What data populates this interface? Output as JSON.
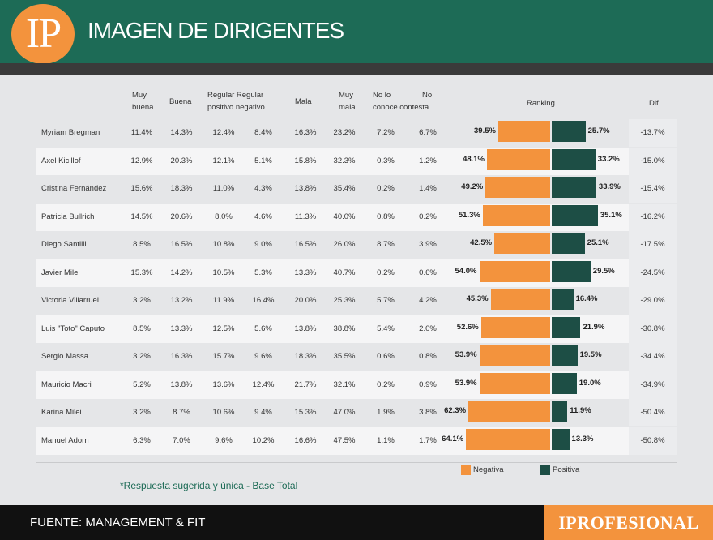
{
  "header": {
    "logo": "IP",
    "title": "IMAGEN DE DIRIGENTES"
  },
  "columns": {
    "muy_buena": [
      "Muy",
      "buena"
    ],
    "buena": "Buena",
    "regular": [
      "Regular Regular",
      "positivo negativo"
    ],
    "mala": "Mala",
    "muy_mala": [
      "Muy",
      "mala"
    ],
    "no_conoce": [
      "No lo",
      "conoce contesta"
    ],
    "no_contesta": "No",
    "ranking": "Ranking",
    "dif": "Dif."
  },
  "rows": [
    {
      "name": "Myriam Bregman",
      "values": [
        "11.4%",
        "14.3%",
        "12.4%",
        "8.4%",
        "16.3%",
        "23.2%",
        "7.2%",
        "6.7%"
      ],
      "neg_label": "39.5%",
      "pos_label": "25.7%",
      "dif": "-13.7%"
    },
    {
      "name": "Axel Kicillof",
      "values": [
        "12.9%",
        "20.3%",
        "12.1%",
        "5.1%",
        "15.8%",
        "32.3%",
        "0.3%",
        "1.2%"
      ],
      "neg_label": "48.1%",
      "pos_label": "33.2%",
      "dif": "-15.0%"
    },
    {
      "name": "Cristina Fernández",
      "values": [
        "15.6%",
        "18.3%",
        "11.0%",
        "4.3%",
        "13.8%",
        "35.4%",
        "0.2%",
        "1.4%"
      ],
      "neg_label": "49.2%",
      "pos_label": "33.9%",
      "dif": "-15.4%"
    },
    {
      "name": "Patricia Bullrich",
      "values": [
        "14.5%",
        "20.6%",
        "8.0%",
        "4.6%",
        "11.3%",
        "40.0%",
        "0.8%",
        "0.2%"
      ],
      "neg_label": "51.3%",
      "pos_label": "35.1%",
      "dif": "-16.2%"
    },
    {
      "name": "Diego Santilli",
      "values": [
        "8.5%",
        "16.5%",
        "10.8%",
        "9.0%",
        "16.5%",
        "26.0%",
        "8.7%",
        "3.9%"
      ],
      "neg_label": "42.5%",
      "pos_label": "25.1%",
      "dif": "-17.5%"
    },
    {
      "name": "Javier Milei",
      "values": [
        "15.3%",
        "14.2%",
        "10.5%",
        "5.3%",
        "13.3%",
        "40.7%",
        "0.2%",
        "0.6%"
      ],
      "neg_label": "54.0%",
      "pos_label": "29.5%",
      "dif": "-24.5%"
    },
    {
      "name": "Victoria Villarruel",
      "values": [
        "3.2%",
        "13.2%",
        "11.9%",
        "16.4%",
        "20.0%",
        "25.3%",
        "5.7%",
        "4.2%"
      ],
      "neg_label": "45.3%",
      "pos_label": "16.4%",
      "dif": "-29.0%"
    },
    {
      "name": "Luis \"Toto\" Caputo",
      "values": [
        "8.5%",
        "13.3%",
        "12.5%",
        "5.6%",
        "13.8%",
        "38.8%",
        "5.4%",
        "2.0%"
      ],
      "neg_label": "52.6%",
      "pos_label": "21.9%",
      "dif": "-30.8%"
    },
    {
      "name": "Sergio Massa",
      "values": [
        "3.2%",
        "16.3%",
        "15.7%",
        "9.6%",
        "18.3%",
        "35.5%",
        "0.6%",
        "0.8%"
      ],
      "neg_label": "53.9%",
      "pos_label": "19.5%",
      "dif": "-34.4%"
    },
    {
      "name": "Mauricio Macri",
      "values": [
        "5.2%",
        "13.8%",
        "13.6%",
        "12.4%",
        "21.7%",
        "32.1%",
        "0.2%",
        "0.9%"
      ],
      "neg_label": "53.9%",
      "pos_label": "19.0%",
      "dif": "-34.9%"
    },
    {
      "name": "Karina Milei",
      "values": [
        "3.2%",
        "8.7%",
        "10.6%",
        "9.4%",
        "15.3%",
        "47.0%",
        "1.9%",
        "3.8%"
      ],
      "neg_label": "62.3%",
      "pos_label": "11.9%",
      "dif": "-50.4%"
    },
    {
      "name": "Manuel Adorn",
      "values": [
        "6.3%",
        "7.0%",
        "9.6%",
        "10.2%",
        "16.6%",
        "47.5%",
        "1.1%",
        "1.7%"
      ],
      "neg_label": "64.1%",
      "pos_label": "13.3%",
      "dif": "-50.8%"
    }
  ],
  "chart_data": {
    "type": "bar",
    "categories": [
      "Myriam Bregman",
      "Axel Kicillof",
      "Cristina Fernández",
      "Patricia Bullrich",
      "Diego Santilli",
      "Javier Milei",
      "Victoria Villarruel",
      "Luis \"Toto\" Caputo",
      "Sergio Massa",
      "Mauricio Macri",
      "Karina Milei",
      "Manuel Adorn"
    ],
    "series": [
      {
        "name": "Negativa",
        "color": "#f3933d",
        "values": [
          39.5,
          48.1,
          49.2,
          51.3,
          42.5,
          54.0,
          45.3,
          52.6,
          53.9,
          53.9,
          62.3,
          64.1
        ]
      },
      {
        "name": "Positiva",
        "color": "#1d4e45",
        "values": [
          25.7,
          33.2,
          33.9,
          35.1,
          25.1,
          29.5,
          16.4,
          21.9,
          19.5,
          19.0,
          11.9,
          13.3
        ]
      }
    ],
    "title": "Ranking",
    "legend": "bottom"
  },
  "legend": {
    "negativa": "Negativa",
    "positiva": "Positiva"
  },
  "note": "*Respuesta sugerida y única - Base Total",
  "footer": {
    "source": "FUENTE: MANAGEMENT & FIT",
    "brand": "IPROFESIONAL"
  },
  "colors": {
    "header_green": "#1d6b56",
    "orange": "#f3933d",
    "dark_green": "#1d4e45"
  }
}
